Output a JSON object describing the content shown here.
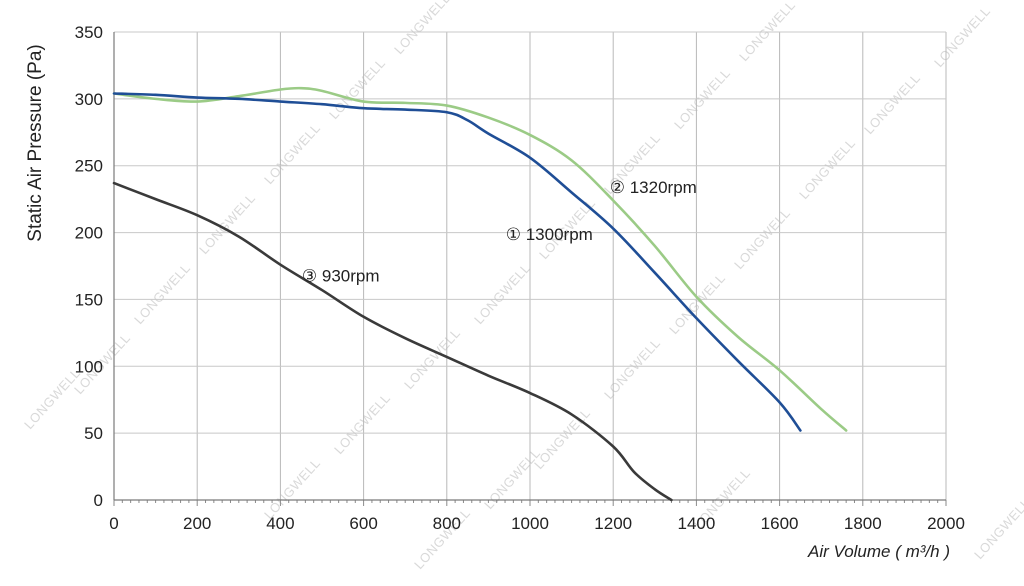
{
  "chart_data": {
    "type": "line",
    "xlabel": "Air Volume ( m³/h )",
    "ylabel": "Static Air Pressure  (Pa)",
    "xlim": [
      0,
      2000
    ],
    "ylim": [
      0,
      350
    ],
    "xticks": [
      0,
      200,
      400,
      600,
      800,
      1000,
      1200,
      1400,
      1600,
      1800,
      2000
    ],
    "yticks": [
      0,
      50,
      100,
      150,
      200,
      250,
      300,
      350
    ],
    "grid": true,
    "watermark": "LONGWELL",
    "series": [
      {
        "name": "① 1300rpm",
        "color": "#1f4e96",
        "x": [
          0,
          100,
          200,
          300,
          400,
          500,
          600,
          700,
          800,
          850,
          900,
          1000,
          1100,
          1200,
          1300,
          1400,
          1500,
          1600,
          1650
        ],
        "y": [
          304,
          303,
          301,
          300,
          298,
          296,
          293,
          292,
          290,
          284,
          274,
          256,
          230,
          203,
          170,
          136,
          104,
          73,
          52
        ]
      },
      {
        "name": "② 1320rpm",
        "color": "#9bcb86",
        "x": [
          0,
          100,
          200,
          300,
          400,
          450,
          500,
          600,
          700,
          800,
          900,
          1000,
          1100,
          1200,
          1300,
          1400,
          1500,
          1600,
          1700,
          1760
        ],
        "y": [
          304,
          300,
          298,
          302,
          307,
          308,
          306,
          298,
          297,
          295,
          286,
          273,
          254,
          224,
          190,
          152,
          122,
          97,
          68,
          52
        ]
      },
      {
        "name": "③ 930rpm",
        "color": "#3a3a3a",
        "x": [
          0,
          100,
          200,
          300,
          400,
          500,
          600,
          700,
          800,
          900,
          1000,
          1100,
          1200,
          1250,
          1300,
          1340
        ],
        "y": [
          237,
          225,
          213,
          197,
          176,
          157,
          137,
          121,
          107,
          93,
          80,
          64,
          40,
          21,
          8,
          0
        ]
      }
    ]
  }
}
